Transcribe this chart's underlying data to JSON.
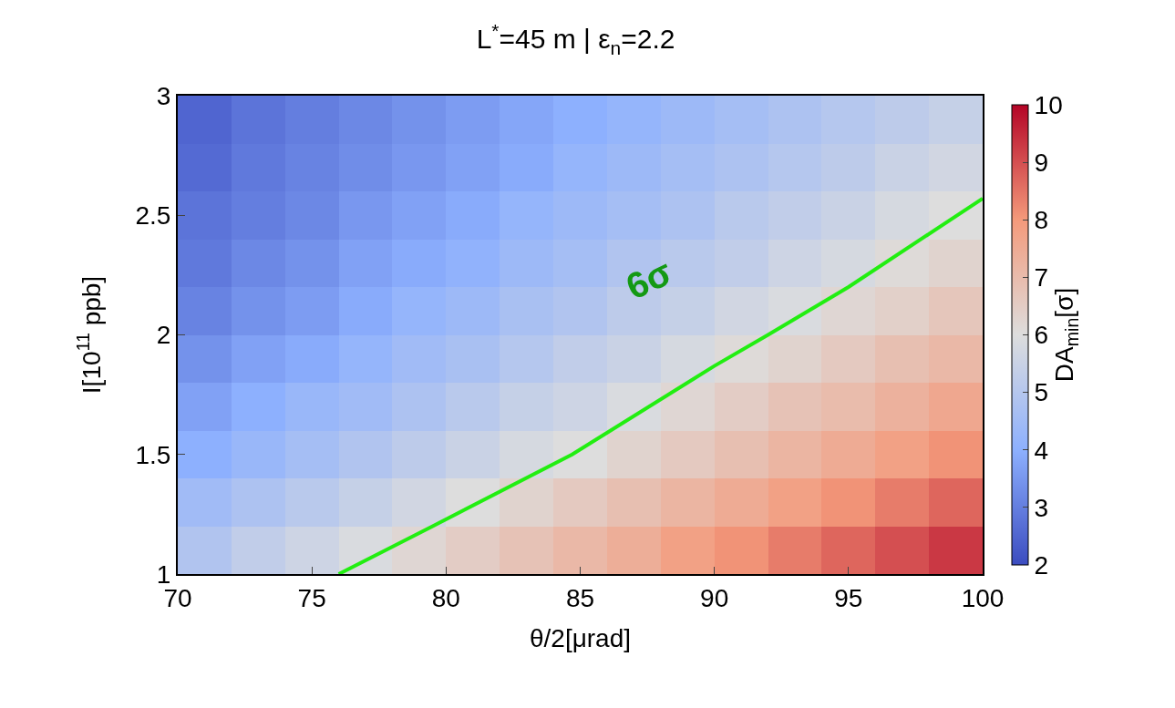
{
  "chart_data": {
    "type": "heatmap",
    "title": "L$^{*}$=45 m | ε$_{n}$=2.2",
    "xlabel": "θ/2[μrad]",
    "ylabel": "I[10$^{11}$ ppb]",
    "clabel": "DA$_{min}$[σ]",
    "x": [
      71,
      73,
      75,
      77,
      79,
      81,
      83,
      85,
      87,
      89,
      91,
      93,
      95,
      97,
      99
    ],
    "y": [
      2.9,
      2.7,
      2.5,
      2.3,
      2.1,
      1.9,
      1.7,
      1.5,
      1.3,
      1.1
    ],
    "cells": [
      [
        2.5,
        2.8,
        3.0,
        3.2,
        3.4,
        3.6,
        3.8,
        4.0,
        4.2,
        4.4,
        4.6,
        4.8,
        5.0,
        5.2,
        5.4
      ],
      [
        2.6,
        2.9,
        3.1,
        3.3,
        3.5,
        3.7,
        3.9,
        4.2,
        4.4,
        4.6,
        4.8,
        5.0,
        5.2,
        5.5,
        5.7
      ],
      [
        2.8,
        3.0,
        3.2,
        3.5,
        3.7,
        3.9,
        4.2,
        4.4,
        4.6,
        4.8,
        5.1,
        5.3,
        5.5,
        5.8,
        6.0
      ],
      [
        2.9,
        3.2,
        3.4,
        3.7,
        3.9,
        4.1,
        4.4,
        4.6,
        4.9,
        5.1,
        5.3,
        5.6,
        5.8,
        6.1,
        6.3
      ],
      [
        3.1,
        3.4,
        3.6,
        3.9,
        4.2,
        4.4,
        4.7,
        4.9,
        5.2,
        5.4,
        5.7,
        5.9,
        6.2,
        6.4,
        6.7
      ],
      [
        3.4,
        3.7,
        3.9,
        4.2,
        4.5,
        4.7,
        5.0,
        5.3,
        5.5,
        5.8,
        6.1,
        6.3,
        6.6,
        6.9,
        7.1
      ],
      [
        3.7,
        4.0,
        4.3,
        4.5,
        4.8,
        5.1,
        5.4,
        5.6,
        5.9,
        6.2,
        6.5,
        6.8,
        7.0,
        7.3,
        7.6
      ],
      [
        4.0,
        4.3,
        4.6,
        4.9,
        5.2,
        5.5,
        5.8,
        6.0,
        6.3,
        6.6,
        6.9,
        7.2,
        7.5,
        7.8,
        8.1
      ],
      [
        4.5,
        4.8,
        5.1,
        5.4,
        5.7,
        6.0,
        6.3,
        6.6,
        6.9,
        7.2,
        7.5,
        7.8,
        8.1,
        8.4,
        8.7
      ],
      [
        4.9,
        5.3,
        5.6,
        5.9,
        6.2,
        6.5,
        6.8,
        7.1,
        7.4,
        7.8,
        8.1,
        8.4,
        8.7,
        9.0,
        9.3
      ]
    ],
    "series": [
      {
        "type": "line",
        "color": "#22ee11",
        "x": [
          76,
          79.5,
          84.7,
          90,
          92,
          95,
          100
        ],
        "values": [
          1.0,
          1.2,
          1.5,
          1.87,
          2.0,
          2.2,
          2.57
        ]
      }
    ],
    "annotations": [
      "6σ"
    ],
    "xlim": [
      70,
      100
    ],
    "xticks": [
      70,
      75,
      80,
      85,
      90,
      95,
      100
    ],
    "ylim": [
      1,
      3
    ],
    "yticks": [
      1,
      1.5,
      2,
      2.5,
      3
    ],
    "clim": [
      2,
      10
    ],
    "cticks": [
      2,
      3,
      4,
      5,
      6,
      7,
      8,
      9,
      10
    ]
  }
}
